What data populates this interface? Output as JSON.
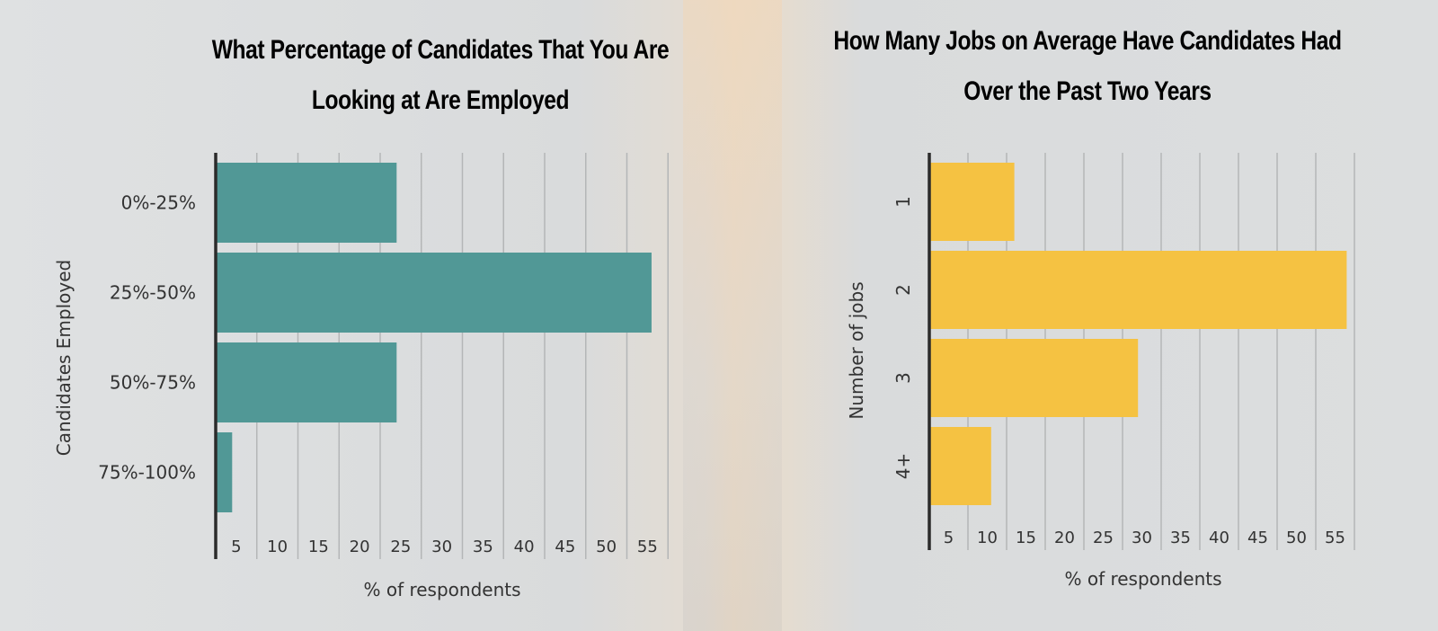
{
  "chart_data": [
    {
      "type": "bar",
      "orientation": "horizontal",
      "title_lines": [
        "What Percentage of Candidates That You Are",
        "Looking at Are Employed"
      ],
      "categories": [
        "0%-25%",
        "25%-50%",
        "50%-75%",
        "75%-100%"
      ],
      "values": [
        22,
        53,
        22,
        2
      ],
      "xlabel": "% of respondents",
      "ylabel": "Candidates Employed",
      "xticks": [
        5,
        10,
        15,
        20,
        25,
        30,
        35,
        40,
        45,
        50,
        55
      ],
      "xlim": [
        0,
        55
      ],
      "grid": true,
      "color": "#519896"
    },
    {
      "type": "bar",
      "orientation": "horizontal",
      "title_lines": [
        "How Many Jobs on Average Have Candidates Had",
        "Over the Past Two Years"
      ],
      "categories": [
        "1",
        "2",
        "3",
        "4+"
      ],
      "values": [
        11,
        54,
        27,
        8
      ],
      "xlabel": "% of respondents",
      "ylabel": "Number of jobs",
      "xticks": [
        5,
        10,
        15,
        20,
        25,
        30,
        35,
        40,
        45,
        50,
        55
      ],
      "xlim": [
        0,
        55
      ],
      "grid": true,
      "color": "#f5c242"
    }
  ]
}
